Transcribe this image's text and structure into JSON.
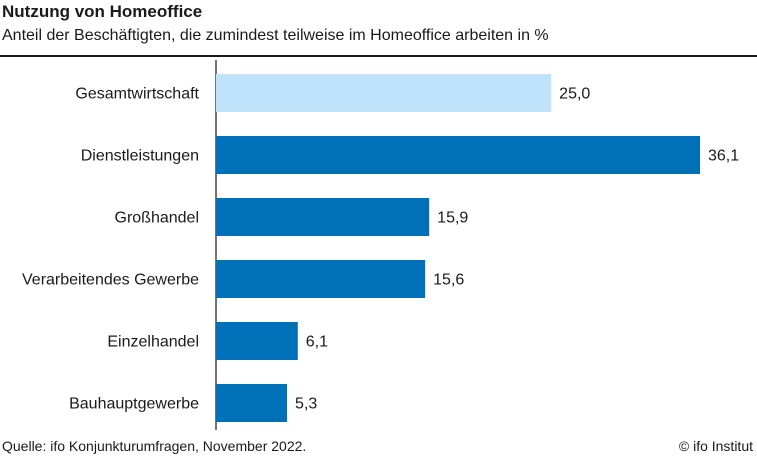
{
  "header": {
    "title": "Nutzung von Homeoffice",
    "subtitle": "Anteil der Beschäftigten, die zumindest teilweise im Homeoffice arbeiten in %"
  },
  "footer": {
    "source": "Quelle: ifo Konjunkturumfragen, November 2022.",
    "copyright": "© ifo Institut"
  },
  "chart_data": {
    "type": "bar",
    "orientation": "horizontal",
    "categories": [
      "Gesamtwirtschaft",
      "Dienstleistungen",
      "Großhandel",
      "Verarbeitendes Gewerbe",
      "Einzelhandel",
      "Bauhauptgewerbe"
    ],
    "values": [
      25.0,
      36.1,
      15.9,
      15.6,
      6.1,
      5.3
    ],
    "value_labels": [
      "25,0",
      "36,1",
      "15,9",
      "15,6",
      "6,1",
      "5,3"
    ],
    "bar_colors": [
      "#bfe3fa",
      "#0070b8",
      "#0070b8",
      "#0070b8",
      "#0070b8",
      "#0070b8"
    ],
    "xlim": [
      0,
      36.1
    ],
    "grid": false,
    "legend": "none"
  }
}
